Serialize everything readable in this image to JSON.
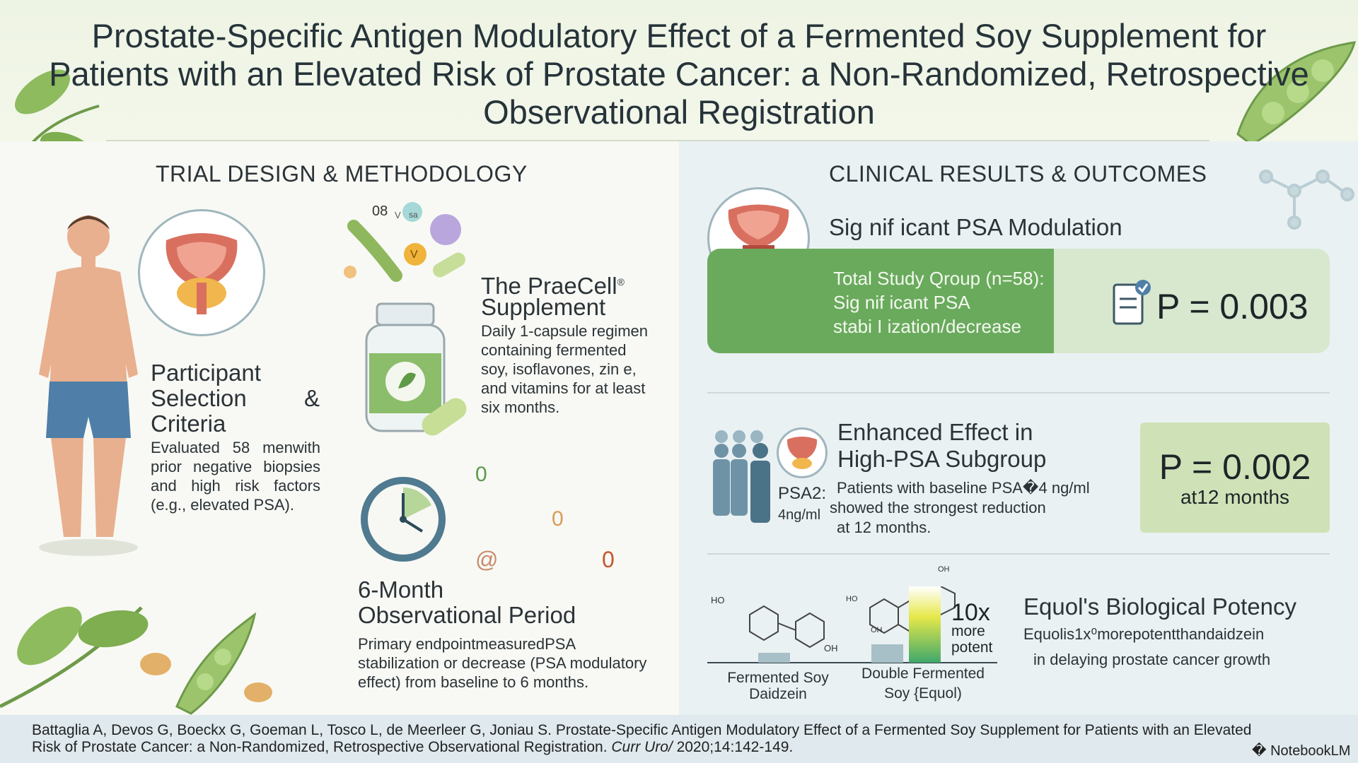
{
  "title": "Prostate-Specific Antigen Modulatory Effect of a Fermented Soy Supplement for Patients with an Elevated Risk of Prostate Cancer: a Non-Randomized, Retrospective Observational Registration",
  "left": {
    "section_title": "TRIAL DESIGN & METHODOLOGY",
    "participants": {
      "heading_line1": "Participant",
      "heading_line2": "Selection",
      "heading_amp": "&",
      "heading_line3": "Criteria",
      "body": "Evaluated 58 menwith prior negative biopsies and high risk factors (e.g., elevated PSA)."
    },
    "supplement": {
      "heading_line1": "The PraeCell",
      "heading_sup": "®",
      "heading_line2": "Supplement",
      "body": "Daily 1-capsule regimen containing fermented soy, isoflavones, zin e, and vitamins for at least six months.",
      "vitamin_labels": [
        "08",
        "V",
        "sa",
        "V"
      ]
    },
    "period": {
      "heading_line1": "6-Month",
      "heading_line2": "Observational Period",
      "body": "Primary endpointmeasuredPSA stabilization or decrease (PSA modulatory effect) from baseline to 6 months.",
      "floating_glyphs": [
        "0",
        "0",
        "@",
        "0"
      ]
    }
  },
  "right": {
    "section_title": "CLINICAL RESULTS & OUTCOMES",
    "psa_modulation": {
      "heading": "Sig nif icant PSA Modulation",
      "banner_line1": "Total Study Qroup (n=58):",
      "banner_line2": "Sig nif icant PSA",
      "banner_line3": "stabi I ization/decrease",
      "pvalue": "P = 0.003"
    },
    "subgroup": {
      "heading_line1": "Enhanced Effect in",
      "heading_line2": "High-PSA Subgroup",
      "psa_label_line1": "PSA2:",
      "psa_label_line2": "4ng/ml",
      "body_line1": "Patients with baseline PSA�4 ng/ml",
      "body_line2": "showed the strongest reduction",
      "body_line3": "at 12 months.",
      "pvalue": "P = 0.002",
      "pvalue_sub": "at12 months"
    },
    "equol": {
      "heading": "Equol's Biological Potency",
      "body_line1": "Equolis1x⁰morepotentthandaidzein",
      "body_line2": "in delaying prostate cancer growth",
      "bar_label_big": "10x",
      "bar_label_small1": "more",
      "bar_label_small2": "potent",
      "mol1_label_line1": "Fermented Soy",
      "mol1_label_line2": "Daidzein",
      "mol2_label_line1": "Double Fermented",
      "mol2_label_line2": "Soy {Equol)",
      "mol1_atoms": [
        "HO",
        "OH"
      ],
      "mol2_atoms": [
        "HO",
        "OH",
        "OH"
      ]
    }
  },
  "footer": {
    "citation": "Battaglia A, Devos G, Boeckx G, Goeman L, Tosco L, de Meerleer G, Joniau S. Prostate-Specific Antigen Modulatory Effect of a Fermented Soy Supplement for Patients with an Elevated Risk of Prostate Cancer: a Non-Randomized, Retrospective Observational Registration.",
    "journal": "Curr Uro/",
    "year_pages": "2020;14:142-149.",
    "brand": "� NotebookLM"
  },
  "colors": {
    "green_banner": "#6aaa5d",
    "pale_green": "#d7e8cf",
    "accent_green": "#cfe2b7",
    "prostate_red": "#d9705f",
    "skin": "#e8b08f",
    "shorts": "#4f7fa8"
  }
}
